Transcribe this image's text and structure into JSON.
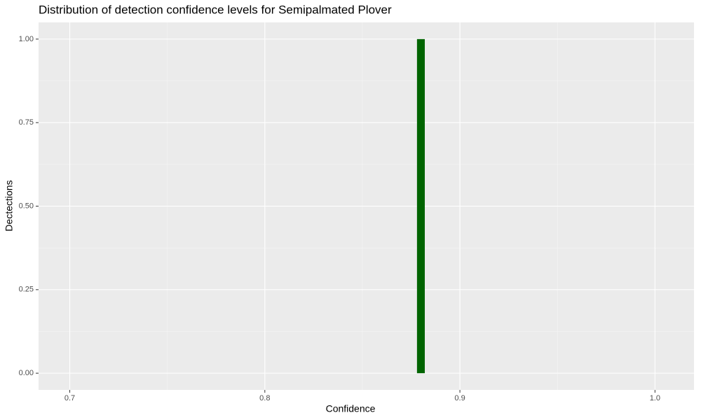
{
  "chart_data": {
    "type": "histogram",
    "title": "Distribution of detection confidence levels for Semipalmated Plover",
    "x_label": "Confidence",
    "y_label": "Dectections",
    "bins": [
      0.878,
      0.882
    ],
    "values": [
      1
    ],
    "color": "#006400",
    "xlim": [
      0.684,
      1.02
    ],
    "xticks": [
      0.7,
      0.8,
      0.9,
      {
        "value": 1,
        "label": "1.0"
      }
    ],
    "xminor": [
      0.75,
      0.85,
      0.95
    ],
    "ylim": [
      -0.05,
      1.05
    ],
    "yticks": [
      {
        "value": 0,
        "label": "0.00"
      },
      {
        "value": 0.25,
        "label": "0.25"
      },
      {
        "value": 0.5,
        "label": "0.50"
      },
      {
        "value": 0.75,
        "label": "0.75"
      },
      {
        "value": 1,
        "label": "1.00"
      }
    ],
    "yminor": [
      0.125,
      0.375,
      0.625,
      0.875
    ],
    "grid": true
  }
}
